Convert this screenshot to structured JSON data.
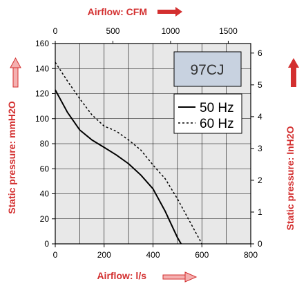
{
  "chart_data": {
    "type": "line",
    "model_label": "97CJ",
    "colors": {
      "plot_background": "#e8e8e8",
      "grid": "#000000",
      "axis_title": "#d32f2f",
      "arrow": "#d32f2f",
      "label_box_fill": "#c8d2e0"
    },
    "axes": {
      "bottom": {
        "title": "Airflow: l/s",
        "range": [
          0,
          800
        ],
        "ticks": [
          "0",
          "200",
          "400",
          "600",
          "800"
        ]
      },
      "top": {
        "title": "Airflow: CFM",
        "range": [
          0,
          1695
        ],
        "ticks": [
          "0",
          "500",
          "1000",
          "1500"
        ],
        "tick_values": [
          0,
          500,
          1000,
          1500
        ]
      },
      "left": {
        "title": "Static pressure: mmH2O",
        "range": [
          0,
          160
        ],
        "ticks": [
          "0",
          "20",
          "40",
          "60",
          "80",
          "100",
          "120",
          "140",
          "160"
        ]
      },
      "right": {
        "title": "Static pressure: InH2O",
        "range": [
          0,
          6.3
        ],
        "ticks": [
          "0",
          "1",
          "2",
          "3",
          "4",
          "5",
          "6"
        ],
        "tick_values": [
          0,
          1,
          2,
          3,
          4,
          5,
          6
        ]
      }
    },
    "grid": true,
    "legend_position": "top-right",
    "series": [
      {
        "name": "50 Hz",
        "style": "solid",
        "x": [
          0,
          50,
          100,
          150,
          200,
          250,
          300,
          350,
          400,
          450,
          500,
          515
        ],
        "y": [
          123,
          105,
          91,
          83,
          77,
          71,
          64,
          55,
          44,
          26,
          5,
          0
        ]
      },
      {
        "name": "60 Hz",
        "style": "dashed",
        "x": [
          0,
          50,
          100,
          150,
          200,
          250,
          300,
          350,
          400,
          450,
          500,
          550,
          600
        ],
        "y": [
          145,
          130,
          116,
          103,
          94,
          90,
          83,
          75,
          63,
          52,
          36,
          18,
          0
        ]
      }
    ]
  }
}
